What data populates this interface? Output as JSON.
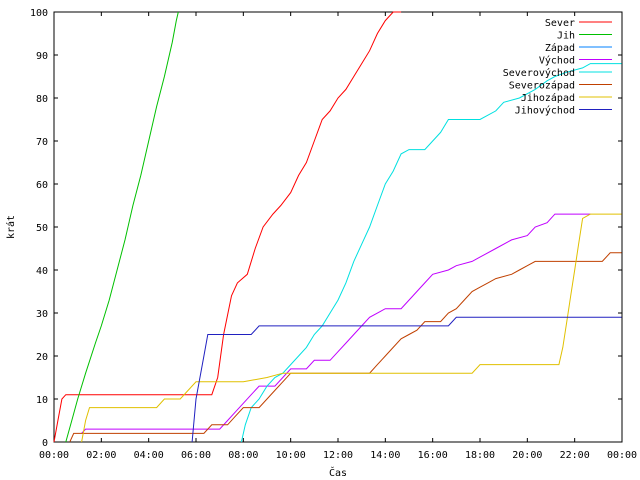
{
  "chart_data": {
    "type": "line",
    "title": "",
    "xlabel": "Čas",
    "ylabel": "krát",
    "xlim": [
      "00:00",
      "00:00"
    ],
    "ylim": [
      0,
      100
    ],
    "grid": false,
    "legend_position": "top-right",
    "x_ticks": [
      "00:00",
      "02:00",
      "04:00",
      "06:00",
      "08:00",
      "10:00",
      "12:00",
      "14:00",
      "16:00",
      "18:00",
      "20:00",
      "22:00",
      "00:00"
    ],
    "y_ticks": [
      "0",
      "10",
      "20",
      "30",
      "40",
      "50",
      "60",
      "70",
      "80",
      "90",
      "100"
    ],
    "series": [
      {
        "name": "Sever",
        "color": "#ff0000",
        "points": [
          [
            "00:00",
            0
          ],
          [
            "00:10",
            5
          ],
          [
            "00:20",
            10
          ],
          [
            "00:30",
            11
          ],
          [
            "06:40",
            11
          ],
          [
            "06:55",
            15
          ],
          [
            "07:10",
            25
          ],
          [
            "07:30",
            34
          ],
          [
            "07:45",
            37
          ],
          [
            "08:10",
            39
          ],
          [
            "08:30",
            45
          ],
          [
            "08:50",
            50
          ],
          [
            "09:15",
            53
          ],
          [
            "09:35",
            55
          ],
          [
            "10:00",
            58
          ],
          [
            "10:20",
            62
          ],
          [
            "10:40",
            65
          ],
          [
            "11:00",
            70
          ],
          [
            "11:20",
            75
          ],
          [
            "11:40",
            77
          ],
          [
            "12:00",
            80
          ],
          [
            "12:20",
            82
          ],
          [
            "12:40",
            85
          ],
          [
            "13:00",
            88
          ],
          [
            "13:20",
            91
          ],
          [
            "13:40",
            95
          ],
          [
            "14:00",
            98
          ],
          [
            "14:20",
            100
          ],
          [
            "14:40",
            100
          ]
        ]
      },
      {
        "name": "Jih",
        "color": "#00c000",
        "points": [
          [
            "00:30",
            0
          ],
          [
            "00:45",
            5
          ],
          [
            "01:00",
            10
          ],
          [
            "01:20",
            16
          ],
          [
            "01:45",
            23
          ],
          [
            "02:00",
            27
          ],
          [
            "02:20",
            33
          ],
          [
            "02:40",
            40
          ],
          [
            "03:00",
            47
          ],
          [
            "03:20",
            55
          ],
          [
            "03:40",
            62
          ],
          [
            "04:00",
            70
          ],
          [
            "04:20",
            78
          ],
          [
            "04:40",
            85
          ],
          [
            "05:00",
            93
          ],
          [
            "05:10",
            98
          ],
          [
            "05:15",
            100
          ]
        ]
      },
      {
        "name": "Západ",
        "color": "#0080ff",
        "points": [
          [
            "20:10",
            0
          ],
          [
            "20:10",
            0
          ]
        ]
      },
      {
        "name": "Východ",
        "color": "#c000ff",
        "points": [
          [
            "01:10",
            2
          ],
          [
            "01:20",
            3
          ],
          [
            "07:00",
            3
          ],
          [
            "07:20",
            5
          ],
          [
            "07:40",
            7
          ],
          [
            "08:00",
            9
          ],
          [
            "08:20",
            11
          ],
          [
            "08:40",
            13
          ],
          [
            "09:20",
            13
          ],
          [
            "09:40",
            15
          ],
          [
            "10:00",
            17
          ],
          [
            "10:40",
            17
          ],
          [
            "11:00",
            19
          ],
          [
            "11:40",
            19
          ],
          [
            "12:00",
            21
          ],
          [
            "12:20",
            23
          ],
          [
            "12:40",
            25
          ],
          [
            "13:00",
            27
          ],
          [
            "13:20",
            29
          ],
          [
            "14:00",
            31
          ],
          [
            "14:40",
            31
          ],
          [
            "15:00",
            33
          ],
          [
            "15:20",
            35
          ],
          [
            "15:40",
            37
          ],
          [
            "16:00",
            39
          ],
          [
            "16:40",
            40
          ],
          [
            "17:00",
            41
          ],
          [
            "17:40",
            42
          ],
          [
            "18:00",
            43
          ],
          [
            "18:40",
            45
          ],
          [
            "19:20",
            47
          ],
          [
            "20:00",
            48
          ],
          [
            "20:20",
            50
          ],
          [
            "20:50",
            51
          ],
          [
            "21:10",
            53
          ],
          [
            "21:40",
            53
          ],
          [
            "22:40",
            53
          ]
        ]
      },
      {
        "name": "Severovýchod",
        "color": "#00e0e0",
        "points": [
          [
            "07:55",
            0
          ],
          [
            "08:05",
            4
          ],
          [
            "08:20",
            8
          ],
          [
            "08:40",
            10
          ],
          [
            "09:00",
            13
          ],
          [
            "09:20",
            15
          ],
          [
            "09:40",
            16
          ],
          [
            "10:00",
            18
          ],
          [
            "10:20",
            20
          ],
          [
            "10:40",
            22
          ],
          [
            "11:00",
            25
          ],
          [
            "11:20",
            27
          ],
          [
            "11:40",
            30
          ],
          [
            "12:00",
            33
          ],
          [
            "12:20",
            37
          ],
          [
            "12:40",
            42
          ],
          [
            "13:00",
            46
          ],
          [
            "13:20",
            50
          ],
          [
            "13:40",
            55
          ],
          [
            "14:00",
            60
          ],
          [
            "14:20",
            63
          ],
          [
            "14:40",
            67
          ],
          [
            "15:00",
            68
          ],
          [
            "15:40",
            68
          ],
          [
            "16:00",
            70
          ],
          [
            "16:20",
            72
          ],
          [
            "16:40",
            75
          ],
          [
            "17:20",
            75
          ],
          [
            "18:00",
            75
          ],
          [
            "18:40",
            77
          ],
          [
            "19:00",
            79
          ],
          [
            "19:40",
            80
          ],
          [
            "20:20",
            82
          ],
          [
            "20:50",
            84
          ],
          [
            "21:10",
            85
          ],
          [
            "21:40",
            86
          ],
          [
            "22:20",
            87
          ],
          [
            "22:40",
            88
          ],
          [
            "23:59",
            88
          ]
        ]
      },
      {
        "name": "Severozápad",
        "color": "#c04000",
        "points": [
          [
            "00:40",
            0
          ],
          [
            "00:50",
            2
          ],
          [
            "06:20",
            2
          ],
          [
            "06:40",
            4
          ],
          [
            "07:20",
            4
          ],
          [
            "07:40",
            6
          ],
          [
            "08:00",
            8
          ],
          [
            "08:40",
            8
          ],
          [
            "09:00",
            10
          ],
          [
            "09:20",
            12
          ],
          [
            "09:40",
            14
          ],
          [
            "10:00",
            16
          ],
          [
            "10:40",
            16
          ],
          [
            "13:20",
            16
          ],
          [
            "13:40",
            18
          ],
          [
            "14:00",
            20
          ],
          [
            "14:20",
            22
          ],
          [
            "14:40",
            24
          ],
          [
            "15:00",
            25
          ],
          [
            "15:20",
            26
          ],
          [
            "15:40",
            28
          ],
          [
            "16:20",
            28
          ],
          [
            "16:40",
            30
          ],
          [
            "17:00",
            31
          ],
          [
            "17:20",
            33
          ],
          [
            "17:40",
            35
          ],
          [
            "18:00",
            36
          ],
          [
            "18:20",
            37
          ],
          [
            "18:40",
            38
          ],
          [
            "19:20",
            39
          ],
          [
            "19:40",
            40
          ],
          [
            "20:00",
            41
          ],
          [
            "20:20",
            42
          ],
          [
            "20:40",
            42
          ],
          [
            "23:10",
            42
          ],
          [
            "23:30",
            44
          ],
          [
            "23:59",
            44
          ]
        ]
      },
      {
        "name": "Jihozápad",
        "color": "#e0c000",
        "points": [
          [
            "01:10",
            0
          ],
          [
            "01:20",
            5
          ],
          [
            "01:30",
            8
          ],
          [
            "04:20",
            8
          ],
          [
            "04:40",
            10
          ],
          [
            "05:20",
            10
          ],
          [
            "05:40",
            12
          ],
          [
            "06:00",
            14
          ],
          [
            "08:00",
            14
          ],
          [
            "09:00",
            15
          ],
          [
            "09:40",
            16
          ],
          [
            "11:00",
            16
          ],
          [
            "13:40",
            16
          ],
          [
            "14:40",
            16
          ],
          [
            "17:40",
            16
          ],
          [
            "18:00",
            18
          ],
          [
            "21:20",
            18
          ],
          [
            "21:30",
            22
          ],
          [
            "21:40",
            28
          ],
          [
            "21:50",
            34
          ],
          [
            "22:00",
            40
          ],
          [
            "22:10",
            46
          ],
          [
            "22:20",
            52
          ],
          [
            "22:40",
            53
          ],
          [
            "23:59",
            53
          ]
        ]
      },
      {
        "name": "Jihovýchod",
        "color": "#2020c0",
        "points": [
          [
            "05:50",
            0
          ],
          [
            "06:00",
            10
          ],
          [
            "06:20",
            20
          ],
          [
            "06:30",
            25
          ],
          [
            "08:20",
            25
          ],
          [
            "08:40",
            27
          ],
          [
            "15:00",
            27
          ],
          [
            "16:40",
            27
          ],
          [
            "17:00",
            29
          ],
          [
            "18:20",
            29
          ],
          [
            "23:59",
            29
          ]
        ]
      }
    ]
  }
}
